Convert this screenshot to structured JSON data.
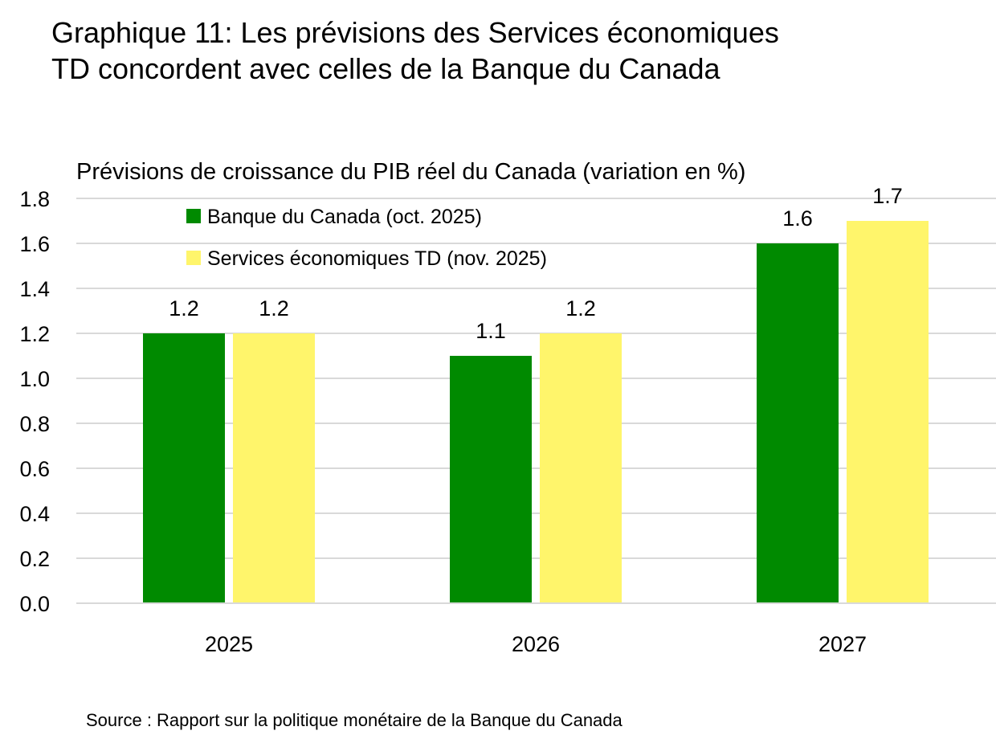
{
  "chart_data": {
    "type": "bar",
    "title": "Graphique 11: Les prévisions des Services économiques TD concordent avec celles de la Banque du Canada",
    "subtitle": "Prévisions de croissance du PIB réel du Canada (variation en %)",
    "categories": [
      "2025",
      "2026",
      "2027"
    ],
    "series": [
      {
        "name": "Banque du Canada (oct. 2025)",
        "values": [
          1.2,
          1.1,
          1.6
        ],
        "color": "#008a00"
      },
      {
        "name": "Services économiques TD (nov. 2025)",
        "values": [
          1.2,
          1.2,
          1.7
        ],
        "color": "#fff56b"
      }
    ],
    "data_labels": [
      [
        "1.2",
        "1.1",
        "1.6"
      ],
      [
        "1.2",
        "1.2",
        "1.7"
      ]
    ],
    "ylim": [
      0,
      1.8
    ],
    "yticks": [
      "0.0",
      "0.2",
      "0.4",
      "0.6",
      "0.8",
      "1.0",
      "1.2",
      "1.4",
      "1.6",
      "1.8"
    ],
    "grid": true,
    "gridline_color": "#d9d9d9",
    "legend_position": "top-left",
    "source": "Source : Rapport sur la politique monétaire de la Banque du Canada"
  }
}
